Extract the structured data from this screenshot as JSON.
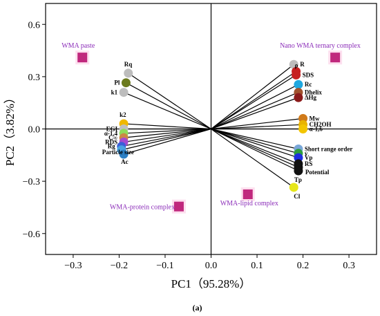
{
  "chart_data": {
    "type": "scatter",
    "subtype": "pca-biplot",
    "panel_label": "(a)",
    "xlabel": "PC1（95.28%）",
    "ylabel": "PC2（3.82%）",
    "xlim": [
      -0.36,
      0.36
    ],
    "ylim": [
      -0.72,
      0.72
    ],
    "xticks": [
      -0.3,
      -0.2,
      -0.1,
      0.0,
      0.1,
      0.2,
      0.3
    ],
    "yticks": [
      -0.6,
      -0.3,
      0.0,
      0.3,
      0.6
    ],
    "xtick_labels": [
      "−0.3",
      "−0.2",
      "−0.1",
      "0.0",
      "0.1",
      "0.2",
      "0.3"
    ],
    "ytick_labels": [
      "−0.6",
      "−0.3",
      "0.0",
      "0.3",
      "0.6"
    ],
    "grid": false,
    "origin_lines": true,
    "colors": {
      "group_marker": "#c0287d",
      "group_label": "#8a2bb8",
      "loading_line": "#000000"
    },
    "groups": [
      {
        "label": "WMA paste",
        "x": -0.28,
        "y": 0.41
      },
      {
        "label": "Nano WMA ternary complex",
        "x": 0.27,
        "y": 0.41
      },
      {
        "label": "WMA-protein complex",
        "x": -0.07,
        "y": -0.445
      },
      {
        "label": "WMA-lipid complex",
        "x": 0.08,
        "y": -0.375
      }
    ],
    "variables": [
      {
        "label": "Rq",
        "x": -0.18,
        "y": 0.32,
        "color": "#bdbdbd"
      },
      {
        "label": "Pl",
        "x": -0.185,
        "y": 0.265,
        "color": "#6b7a1d"
      },
      {
        "label": "k1",
        "x": -0.19,
        "y": 0.21,
        "color": "#bdbdbd"
      },
      {
        "label": "k2",
        "x": -0.19,
        "y": 0.03,
        "color": "#f0b800"
      },
      {
        "label": "EGI",
        "x": -0.19,
        "y": 0.0,
        "color": "#c0c0c0"
      },
      {
        "label": "α-1,4",
        "x": -0.19,
        "y": -0.025,
        "color": "#8fdc5a"
      },
      {
        "label": "C∞",
        "x": -0.19,
        "y": -0.05,
        "color": "#cc8844"
      },
      {
        "label": "RDS",
        "x": -0.19,
        "y": -0.075,
        "color": "#a64bcf"
      },
      {
        "label": "Rg",
        "x": -0.195,
        "y": -0.1,
        "color": "#3a5fd8"
      },
      {
        "label": "Particle size",
        "x": -0.195,
        "y": -0.12,
        "color": "#4aa3e0"
      },
      {
        "label": "Ac",
        "x": -0.19,
        "y": -0.145,
        "color": "#2c7fc4"
      },
      {
        "label": "R",
        "x": 0.18,
        "y": 0.37,
        "color": "#bdbdbd"
      },
      {
        "label": "ρ",
        "x": 0.185,
        "y": 0.33,
        "color": "#c62020"
      },
      {
        "label": "SDS",
        "x": 0.185,
        "y": 0.31,
        "color": "#c62020"
      },
      {
        "label": "Rc",
        "x": 0.19,
        "y": 0.255,
        "color": "#1fa8e0"
      },
      {
        "label": "Dhelix",
        "x": 0.19,
        "y": 0.21,
        "color": "#a0522d"
      },
      {
        "label": "ΔHg",
        "x": 0.19,
        "y": 0.18,
        "color": "#8b1a1a"
      },
      {
        "label": "Mw",
        "x": 0.2,
        "y": 0.06,
        "color": "#d07a1a"
      },
      {
        "label": "CH2OH",
        "x": 0.2,
        "y": 0.025,
        "color": "#e8b400"
      },
      {
        "label": "α-1,6",
        "x": 0.2,
        "y": 0.0,
        "color": "#f2c500"
      },
      {
        "label": "Short range order",
        "x": 0.19,
        "y": -0.115,
        "color": "#7aa7d8"
      },
      {
        "label": "v",
        "x": 0.19,
        "y": -0.14,
        "color": "#2e9d3e"
      },
      {
        "label": "Vp",
        "x": 0.19,
        "y": -0.165,
        "color": "#1f2de0"
      },
      {
        "label": "RS",
        "x": 0.19,
        "y": -0.2,
        "color": "#111111"
      },
      {
        "label": "Potential",
        "x": 0.19,
        "y": -0.22,
        "color": "#111111"
      },
      {
        "label": "Tp",
        "x": 0.19,
        "y": -0.24,
        "color": "#111111"
      },
      {
        "label": "Cl",
        "x": 0.18,
        "y": -0.335,
        "color": "#e6e61a"
      }
    ]
  }
}
